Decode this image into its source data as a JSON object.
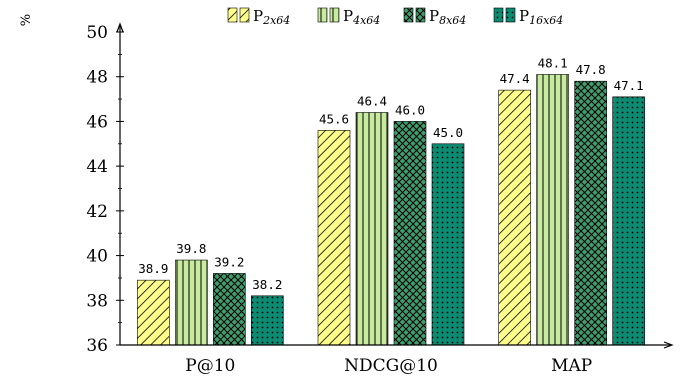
{
  "chart_data": {
    "type": "bar",
    "categories": [
      "P@10",
      "NDCG@10",
      "MAP"
    ],
    "series": [
      {
        "name_main": "P",
        "name_sub": "2x64",
        "values": [
          38.9,
          45.6,
          47.4
        ],
        "color": "#ffff8c",
        "pattern": "diagonal-hatch"
      },
      {
        "name_main": "P",
        "name_sub": "4x64",
        "values": [
          39.8,
          46.4,
          48.1
        ],
        "color": "#c8eba0",
        "pattern": "vertical-lines"
      },
      {
        "name_main": "P",
        "name_sub": "8x64",
        "values": [
          39.2,
          46.0,
          47.8
        ],
        "color": "#3f9e6e",
        "pattern": "crosshatch"
      },
      {
        "name_main": "P",
        "name_sub": "16x64",
        "values": [
          38.2,
          45.0,
          47.1
        ],
        "color": "#0d8a72",
        "pattern": "dots"
      }
    ],
    "data_labels": [
      [
        "38.9",
        "45.6",
        "47.4"
      ],
      [
        "39.8",
        "46.4",
        "48.1"
      ],
      [
        "39.2",
        "46.0",
        "47.8"
      ],
      [
        "38.2",
        "45.0",
        "47.1"
      ]
    ],
    "ylabel": "%",
    "ylim": [
      36,
      50
    ],
    "yticks": [
      36,
      38,
      40,
      42,
      44,
      46,
      48,
      50
    ],
    "ytick_labels": [
      "36",
      "38",
      "40",
      "42",
      "44",
      "46",
      "48",
      "50"
    ],
    "grid": true,
    "legend_position": "top-center"
  }
}
